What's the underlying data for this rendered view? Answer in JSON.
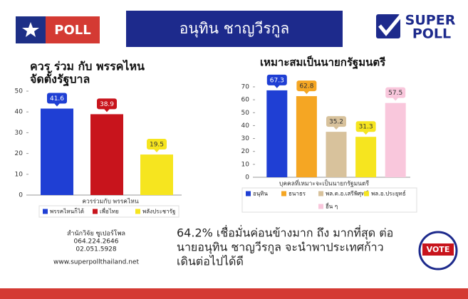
{
  "header": {
    "logo_left": "POLL",
    "title": "อนุทิน ชาญวีรกูล",
    "logo_right_top": "SUPER",
    "logo_right_bottom": "POLL"
  },
  "chart_data": [
    {
      "type": "bar",
      "title": [
        "ควร ร่วม กับ พรรคไหน",
        "จัดตั้งรัฐบาล"
      ],
      "x_label": "ควรร่วมกับ พรรคไหน",
      "ylim": [
        0,
        50
      ],
      "yticks": [
        0,
        10,
        20,
        30,
        40,
        50
      ],
      "grid": false,
      "series": [
        {
          "name": "พรรคไหนก็ได้",
          "color": "#1f3fd4",
          "values": [
            41.6
          ]
        },
        {
          "name": "เพื่อไทย",
          "color": "#c8141c",
          "values": [
            38.9
          ]
        },
        {
          "name": "พลังประชารัฐ",
          "color": "#f6e51f",
          "values": [
            19.5
          ]
        }
      ]
    },
    {
      "type": "bar",
      "title": [
        "เหมาะสมเป็นนายกรัฐมนตรี"
      ],
      "x_label": "บุคคลที่เหมาะจะเป็นนายกรัฐมนตรี",
      "ylim": [
        0,
        70
      ],
      "yticks": [
        0,
        10,
        20,
        30,
        40,
        50,
        60,
        70
      ],
      "grid": false,
      "series": [
        {
          "name": "อนุทิน",
          "color": "#1f3fd4",
          "values": [
            67.3
          ]
        },
        {
          "name": "ธนาธร",
          "color": "#f5a623",
          "values": [
            62.8
          ]
        },
        {
          "name": "พล.ต.อ.เสรีพิศุทธ์",
          "color": "#d8c29c",
          "values": [
            35.2
          ]
        },
        {
          "name": "พล.อ.ประยุทธ์",
          "color": "#f6e51f",
          "values": [
            31.3
          ]
        },
        {
          "name": "อื่น ๆ",
          "color": "#f9c7dc",
          "values": [
            57.5
          ]
        }
      ]
    }
  ],
  "contact": [
    "สำนักวิจัย ซูเปอร์โพล",
    "064.224.2646",
    "02.051.5928",
    "www.superpollthailand.net"
  ],
  "summary": [
    "64.2% เชื่อมั่นค่อนข้างมาก ถึง มากที่สุด ต่อ",
    "นายอนุทิน ชาญวีรกูล จะนำพาประเทศก้าว",
    "เดินต่อไปได้ดี"
  ],
  "badge": "VOTE"
}
